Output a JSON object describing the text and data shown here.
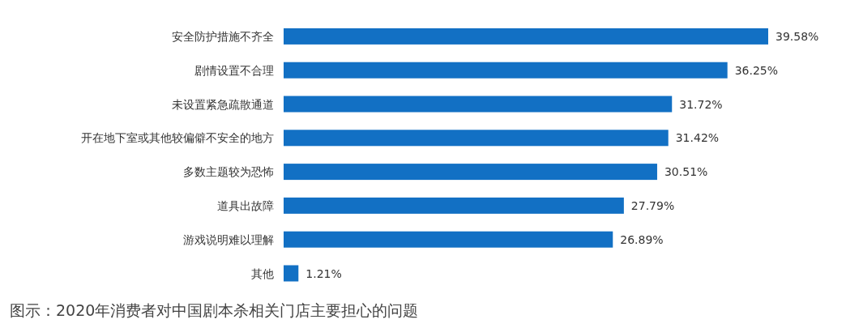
{
  "chart_data": {
    "type": "bar",
    "orientation": "horizontal",
    "color": "#1270c4",
    "categories": [
      "安全防护措施不齐全",
      "剧情设置不合理",
      "未设置紧急疏散通道",
      "开在地下室或其他较偏僻不安全的地方",
      "多数主题较为恐怖",
      "道具出故障",
      "游戏说明难以理解",
      "其他"
    ],
    "values": [
      39.58,
      36.25,
      31.72,
      31.42,
      30.51,
      27.79,
      26.89,
      1.21
    ],
    "value_labels": [
      "39.58%",
      "36.25%",
      "31.72%",
      "31.42%",
      "30.51%",
      "27.79%",
      "26.89%",
      "1.21%"
    ],
    "annotations": [
      "图示：2020年消费者对中国剧本杀相关门店主要担心的问题"
    ]
  }
}
